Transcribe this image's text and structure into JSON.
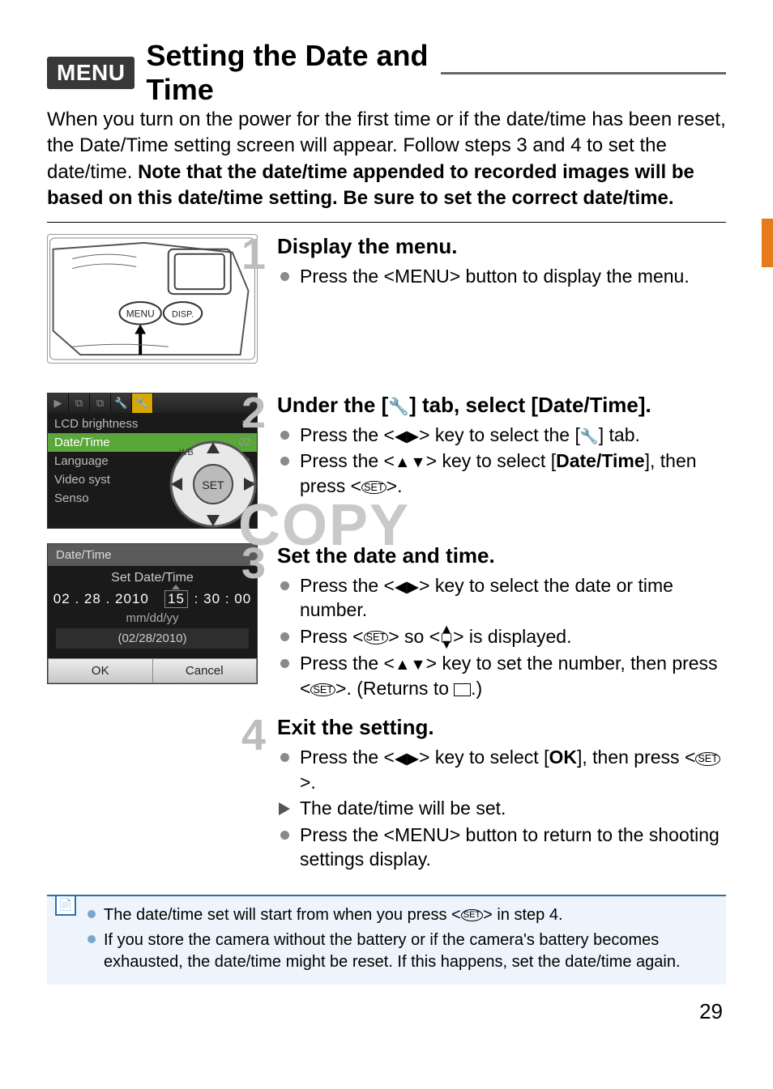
{
  "page_number": "29",
  "title": {
    "badge": "MENU",
    "text": "Setting the Date and Time"
  },
  "intro": {
    "plain": "When you turn on the power for the first time or if the date/time has been reset, the Date/Time setting screen will appear. Follow steps 3 and 4 to set the date/time. ",
    "bold": "Note that the date/time appended to recorded images will be based on this date/time setting. Be sure to set the correct date/time."
  },
  "watermark": "COPY",
  "steps": [
    {
      "num": "1",
      "head": "Display the menu.",
      "items": [
        {
          "type": "dot",
          "html": "Press the &lt;<span class='sans'>MENU</span>&gt; button to display the menu."
        }
      ]
    },
    {
      "num": "2",
      "head_html": "Under the [<span class='glyph wrench'></span>] tab, select [Date/Time].",
      "items": [
        {
          "type": "dot",
          "html": "Press the &lt;<span class='glyph tri-lr'></span>&gt; key to select the [<span class='glyph wrench'></span>] tab."
        },
        {
          "type": "dot",
          "html": "Press the &lt;<span class='glyph tri-ud'></span>&gt; key to select [<span class='bold'>Date/Time</span>], then press &lt;<span class='set-circ'>SET</span>&gt;."
        }
      ]
    },
    {
      "num": "3",
      "head": "Set the date and time.",
      "items": [
        {
          "type": "dot",
          "html": "Press the &lt;<span class='glyph tri-lr'></span>&gt; key to select the date or time number."
        },
        {
          "type": "dot",
          "html": "Press &lt;<span class='set-circ'>SET</span>&gt; so &lt;<span class='updn-box'><span>▲</span><span>▢</span><span>▼</span></span>&gt; is displayed."
        },
        {
          "type": "dot",
          "html": "Press the &lt;<span class='glyph tri-ud'></span>&gt; key to set the number, then press &lt;<span class='set-circ'>SET</span>&gt;. (Returns to <span class='sq'></span>.)"
        }
      ]
    },
    {
      "num": "4",
      "head": "Exit the setting.",
      "items": [
        {
          "type": "dot",
          "html": "Press the &lt;<span class='glyph tri-lr'></span>&gt; key to select [<span class='bold'>OK</span>], then press &lt;<span class='set-circ'>SET</span>&gt;."
        },
        {
          "type": "arrow",
          "html": "The date/time will be set."
        },
        {
          "type": "dot",
          "html": "Press the &lt;<span class='sans'>MENU</span>&gt; button to return to the shooting settings display."
        }
      ]
    }
  ],
  "menu_shot": {
    "tabs": [
      "▶",
      "⧉",
      "⧉",
      "🔧",
      "🔧"
    ],
    "selected_tab_index": 4,
    "items": [
      {
        "label": "LCD brightness",
        "value": "✻"
      },
      {
        "label": "Date/Time",
        "value": "02",
        "hl": true
      },
      {
        "label": "Language",
        "value": "⊕"
      },
      {
        "label": "Video syst",
        "value": ""
      },
      {
        "label": "Senso",
        "value": ""
      }
    ]
  },
  "datetime_dialog": {
    "title": "Date/Time",
    "subtitle": "Set Date/Time",
    "date_parts": [
      "02",
      ".",
      "28",
      ".",
      "2010"
    ],
    "time_parts": [
      "15",
      ":",
      "30",
      ":",
      "00"
    ],
    "boxed_index": 0,
    "format": "mm/dd/yy",
    "full_date": "(02/28/2010)",
    "ok": "OK",
    "cancel": "Cancel"
  },
  "notes": [
    "The date/time set will start from when you press <SET> in step 4.",
    "If you store the camera without the battery or if the camera's battery becomes exhausted, the date/time might be reset. If this happens, set the date/time again."
  ],
  "colors": {
    "badge_bg": "#383838",
    "step_num": "#bdbdbd",
    "note_border": "#2a6fb0",
    "note_bg": "#eef4fb",
    "side_tab": "#e67b1a",
    "menu_hl": "#5aa63a",
    "menu_tab_sel": "#d8a800"
  }
}
